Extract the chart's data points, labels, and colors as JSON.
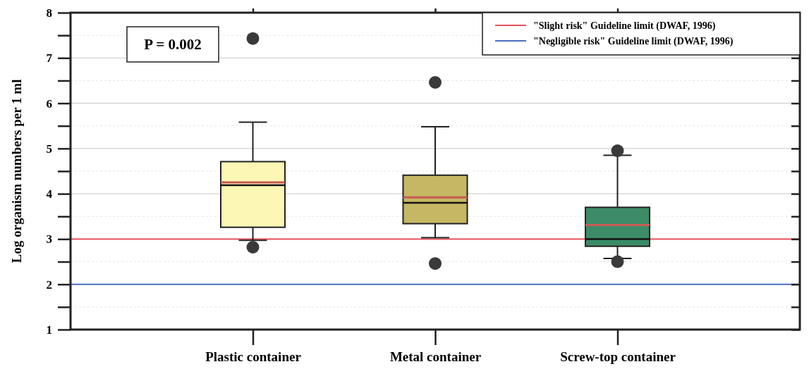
{
  "chart_data": {
    "type": "box",
    "ylabel": "Log organism numbers per 1 ml",
    "categories": [
      "Plastic container",
      "Metal container",
      "Screw-top container"
    ],
    "colors": [
      "#fdf7b5",
      "#c6b764",
      "#3c8c68"
    ],
    "boxes": [
      {
        "low": 2.97,
        "q1": 3.26,
        "median": 4.19,
        "q3": 4.71,
        "high": 5.58,
        "mean": 4.25,
        "outliers": [
          7.43,
          2.82
        ]
      },
      {
        "low": 3.03,
        "q1": 3.34,
        "median": 3.8,
        "q3": 4.41,
        "high": 5.48,
        "mean": 3.92,
        "outliers": [
          6.46,
          2.46
        ]
      },
      {
        "low": 2.57,
        "q1": 2.84,
        "median": 3.0,
        "q3": 3.7,
        "high": 4.85,
        "mean": 3.31,
        "outliers": [
          4.95,
          2.5
        ]
      }
    ],
    "ylim": [
      1,
      8
    ],
    "yticks": [
      1,
      {
        "value": 1.5,
        "label": null
      },
      2,
      {
        "value": 2.5,
        "label": null
      },
      3,
      {
        "value": 3.5,
        "label": null
      },
      4,
      {
        "value": 4.5,
        "label": null
      },
      5,
      {
        "value": 5.5,
        "label": null
      },
      6,
      {
        "value": 6.5,
        "label": null
      },
      7,
      {
        "value": 7.5,
        "label": null
      },
      8
    ],
    "grid": "y",
    "ref_lines": [
      {
        "axis": "y",
        "value": 3,
        "label": "\"Slight risk\" Guideline limit (DWAF, 1996)",
        "color": "#e8505a"
      },
      {
        "axis": "y",
        "value": 2,
        "label": "\"Negligible risk\" Guideline limit (DWAF, 1996)",
        "color": "#4a6fc0"
      }
    ],
    "legend": "top right",
    "annotations": [
      "P = 0.002"
    ]
  }
}
